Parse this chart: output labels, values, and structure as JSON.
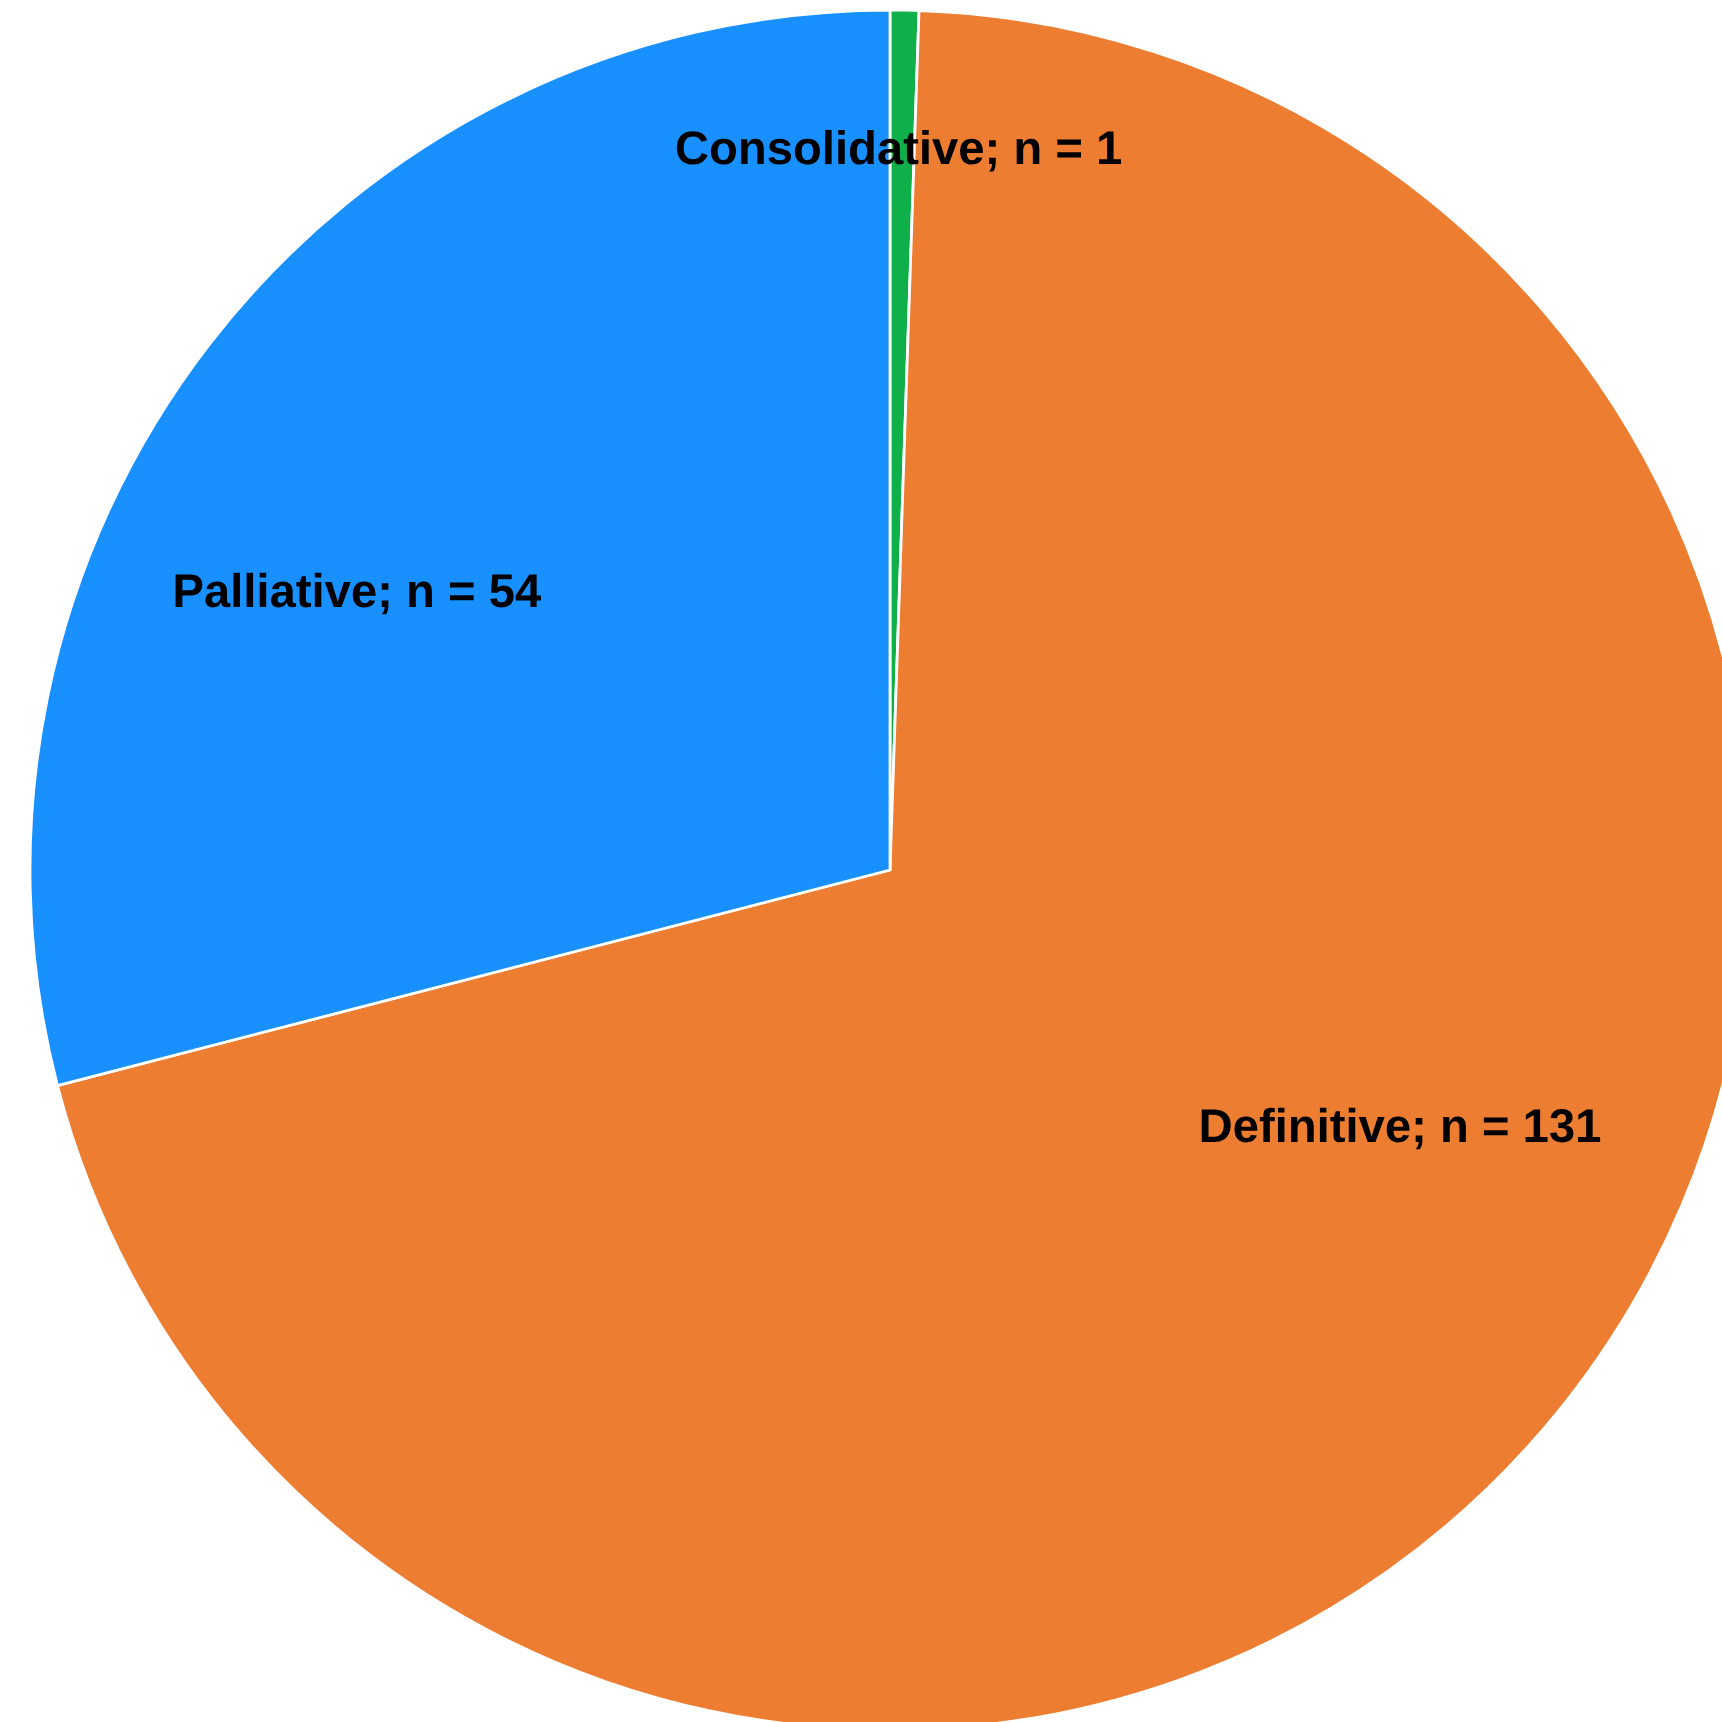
{
  "chart_data": {
    "type": "pie",
    "categories": [
      "Consolidative; n = 1",
      "Definitive; n = 131",
      "Palliative; n = 54"
    ],
    "values": [
      1,
      131,
      54
    ],
    "colors": [
      "#0fb04a",
      "#ed7d31",
      "#1890ff"
    ]
  }
}
